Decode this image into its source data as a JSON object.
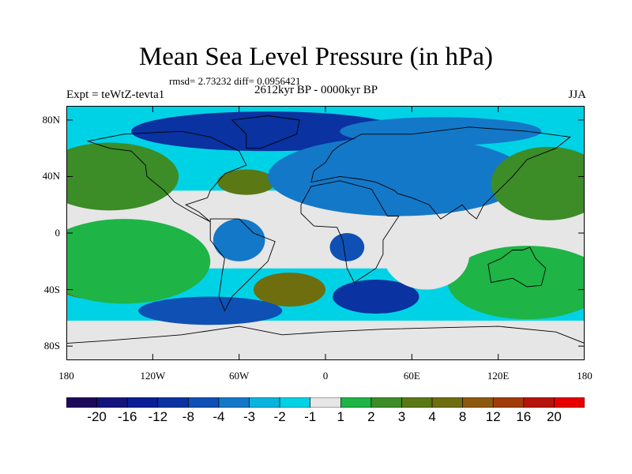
{
  "title": "Mean Sea Level Pressure (in hPa)",
  "stats_text": "rmsd= 2.73232 diff= 0.0956421",
  "period": "2612kyr BP - 0000kyr BP",
  "experiment": "Expt = teWtZ-tevta1",
  "season": "JJA",
  "map_data": {
    "type": "filled_contour_map",
    "projection": "cylindrical equidistant",
    "lon_range": [
      -180,
      180
    ],
    "lat_range": [
      -90,
      90
    ],
    "xticks": [
      {
        "lon": -180,
        "label": "180"
      },
      {
        "lon": -120,
        "label": "120W"
      },
      {
        "lon": -60,
        "label": "60W"
      },
      {
        "lon": 0,
        "label": "0"
      },
      {
        "lon": 60,
        "label": "60E"
      },
      {
        "lon": 120,
        "label": "120E"
      },
      {
        "lon": 180,
        "label": "180"
      }
    ],
    "yticks": [
      {
        "lat": 80,
        "label": "80N"
      },
      {
        "lat": 40,
        "label": "40N"
      },
      {
        "lat": 0,
        "label": "0"
      },
      {
        "lat": -40,
        "label": "40S"
      },
      {
        "lat": -80,
        "label": "80S"
      }
    ]
  },
  "colorbar": {
    "labels": [
      "-20",
      "-16",
      "-12",
      "-8",
      "-4",
      "-3",
      "-2",
      "-1",
      "1",
      "2",
      "3",
      "4",
      "8",
      "12",
      "16",
      "20"
    ],
    "colors": [
      "#1e0a5a",
      "#14147d",
      "#0a1e96",
      "#0a32a0",
      "#0f50b4",
      "#1478c8",
      "#0ab4dc",
      "#00d2e6",
      "#e6e6e6",
      "#1eb446",
      "#3c8c28",
      "#5a7814",
      "#6e6e0f",
      "#8c5a0f",
      "#a03c0a",
      "#b4140a",
      "#e60000"
    ]
  },
  "regions": [
    {
      "name": "arctic-low",
      "center": [
        -40,
        72
      ],
      "radius": [
        95,
        14
      ],
      "color": "#0a32a0"
    },
    {
      "name": "arctic-low-2",
      "center": [
        80,
        72
      ],
      "radius": [
        70,
        10
      ],
      "color": "#1478c8"
    },
    {
      "name": "north-pacific-high",
      "center": [
        -150,
        38
      ],
      "radius": [
        35,
        18
      ],
      "color": "#6e6e0f"
    },
    {
      "name": "north-pacific-high-outer",
      "center": [
        -150,
        40
      ],
      "radius": [
        48,
        24
      ],
      "color": "#3c8c28"
    },
    {
      "name": "north-atlantic-high",
      "center": [
        -55,
        36
      ],
      "radius": [
        20,
        9
      ],
      "color": "#5a7814"
    },
    {
      "name": "asian-low",
      "center": [
        70,
        38
      ],
      "radius": [
        55,
        20
      ],
      "color": "#0a1e96"
    },
    {
      "name": "asian-low-outer",
      "center": [
        50,
        40
      ],
      "radius": [
        90,
        28
      ],
      "color": "#1478c8"
    },
    {
      "name": "west-pacific-high",
      "center": [
        160,
        38
      ],
      "radius": [
        30,
        20
      ],
      "color": "#6e6e0f"
    },
    {
      "name": "west-pacific-high-outer",
      "center": [
        155,
        35
      ],
      "radius": [
        40,
        26
      ],
      "color": "#3c8c28"
    },
    {
      "name": "south-pacific-high",
      "center": [
        -150,
        -30
      ],
      "radius": [
        45,
        18
      ],
      "color": "#6e6e0f"
    },
    {
      "name": "south-pacific-high-outer",
      "center": [
        -140,
        -20
      ],
      "radius": [
        60,
        30
      ],
      "color": "#1eb446"
    },
    {
      "name": "south-america-low",
      "center": [
        -60,
        -5
      ],
      "radius": [
        18,
        15
      ],
      "color": "#1478c8"
    },
    {
      "name": "south-atlantic-high",
      "center": [
        -25,
        -40
      ],
      "radius": [
        25,
        12
      ],
      "color": "#6e6e0f"
    },
    {
      "name": "south-indian-low",
      "center": [
        35,
        -45
      ],
      "radius": [
        30,
        12
      ],
      "color": "#0a32a0"
    },
    {
      "name": "southern-ocean-low",
      "center": [
        -80,
        -55
      ],
      "radius": [
        50,
        10
      ],
      "color": "#0f50b4"
    },
    {
      "name": "australia-high",
      "center": [
        145,
        -40
      ],
      "radius": [
        45,
        18
      ],
      "color": "#6e6e0f"
    },
    {
      "name": "australia-high-outer",
      "center": [
        140,
        -35
      ],
      "radius": [
        55,
        26
      ],
      "color": "#1eb446"
    },
    {
      "name": "africa-low",
      "center": [
        15,
        -10
      ],
      "radius": [
        12,
        10
      ],
      "color": "#0f50b4"
    },
    {
      "name": "indian-ocean-neutral",
      "center": [
        70,
        -15
      ],
      "radius": [
        30,
        25
      ],
      "color": "#e6e6e6"
    }
  ]
}
